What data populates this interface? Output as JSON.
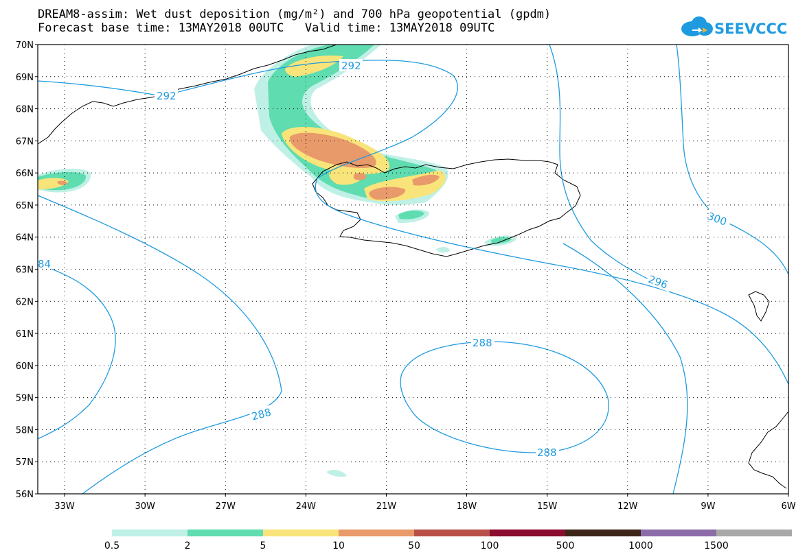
{
  "title": {
    "line1": "DREAM8-assim: Wet dust deposition (mg/m²) and 700 hPa geopotential (gpdm)",
    "line2": "Forecast base time: 13MAY2018 00UTC   Valid time: 13MAY2018 09UTC"
  },
  "logo": {
    "text": "SEEVCCC",
    "color": "#1e9be0",
    "icon": "cloud-icon"
  },
  "map": {
    "lon_range": [
      -34,
      -6
    ],
    "lat_range": [
      56,
      70
    ],
    "lat_labels": [
      "70N",
      "69N",
      "68N",
      "67N",
      "66N",
      "65N",
      "64N",
      "63N",
      "62N",
      "61N",
      "60N",
      "59N",
      "58N",
      "57N",
      "56N"
    ],
    "lon_labels": [
      "33W",
      "30W",
      "27W",
      "24W",
      "21W",
      "18W",
      "15W",
      "12W",
      "9W",
      "6W"
    ],
    "contour_color": "#1e9be0",
    "contour_labels": [
      "292",
      "292",
      "300",
      "296",
      "84",
      "288",
      "288",
      "288"
    ]
  },
  "legend": {
    "colors": [
      "#bff0e6",
      "#5fdcb0",
      "#f8e47a",
      "#e89a6a",
      "#b85048",
      "#8a0c2e",
      "#3c2418",
      "#8c6ca8",
      "#a8a8a8"
    ],
    "labels": [
      "0.5",
      "2",
      "5",
      "10",
      "50",
      "100",
      "500",
      "1000",
      "1500"
    ]
  }
}
